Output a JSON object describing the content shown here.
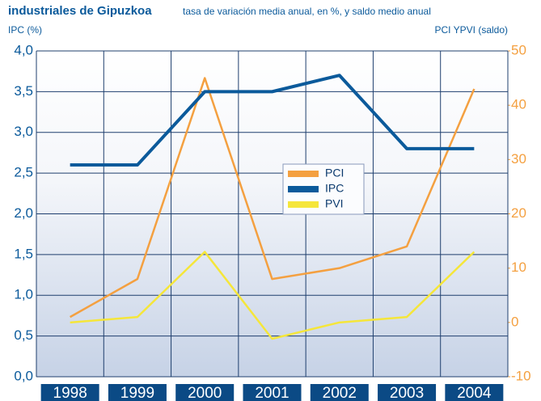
{
  "chart_data": {
    "type": "line",
    "title": "industriales de Gipuzkoa",
    "subtitle": "tasa de variación media anual, en %, y saldo medio anual",
    "y_label": "IPC (%)",
    "y2_label": "PCI YPVI (saldo)",
    "categories": [
      "1998",
      "1999",
      "2000",
      "2001",
      "2002",
      "2003",
      "2004"
    ],
    "series": [
      {
        "name": "PCI",
        "color": "#f4a040",
        "axis": "y2",
        "values": [
          1,
          8,
          45,
          8,
          10,
          14,
          43
        ]
      },
      {
        "name": "IPC",
        "color": "#0b5a9b",
        "values": [
          2.6,
          2.6,
          3.5,
          3.5,
          3.7,
          2.8,
          2.8
        ]
      },
      {
        "name": "PVI",
        "color": "#f5e63a",
        "axis": "y2",
        "values": [
          0,
          1,
          13,
          -3,
          0,
          1,
          13
        ]
      }
    ],
    "ylim": [
      0,
      4
    ],
    "yticks": [
      {
        "value": 0,
        "label": "0,0"
      },
      {
        "value": 0.5,
        "label": "0,5"
      },
      {
        "value": 1,
        "label": "1,0"
      },
      {
        "value": 1.5,
        "label": "1,5"
      },
      {
        "value": 2,
        "label": "2,0"
      },
      {
        "value": 2.5,
        "label": "2,5"
      },
      {
        "value": 3,
        "label": "3,0"
      },
      {
        "value": 3.5,
        "label": "3,5"
      },
      {
        "value": 4,
        "label": "4,0"
      }
    ],
    "y2lim": [
      -10,
      50
    ],
    "y2ticks": [
      -10,
      0,
      10,
      20,
      30,
      40,
      50
    ],
    "grid": true
  }
}
